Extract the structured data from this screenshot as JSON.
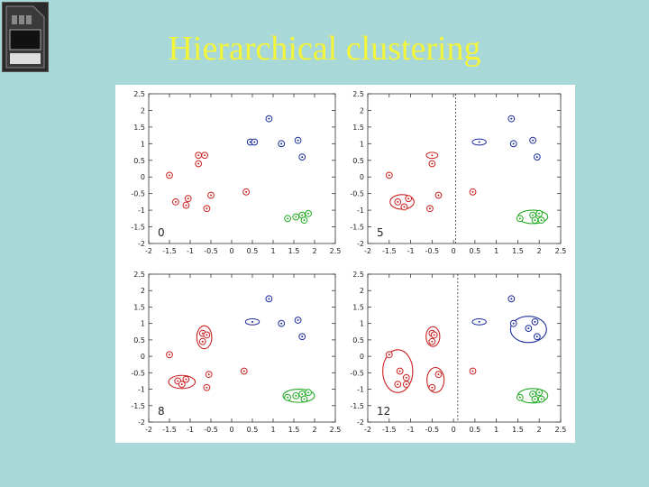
{
  "slide": {
    "title": "Hierarchical clustering",
    "background": "#a8d8d8",
    "title_color": "#f4f43a"
  },
  "logo": {
    "icon": "sd-memory-card-icon"
  },
  "colors": {
    "red": "#cc2222",
    "blue": "#1c2c9c",
    "green": "#22aa22"
  },
  "chart_data": [
    {
      "type": "scatter",
      "panel_label": "0",
      "xlim": [
        -2,
        2.5
      ],
      "ylim": [
        -2,
        2.5
      ],
      "xticks": [
        "-2",
        "-1.5",
        "-1",
        "-0.5",
        "0",
        "0.5",
        "1",
        "1.5",
        "2",
        "2.5"
      ],
      "yticks": [
        "2.5",
        "2",
        "1.5",
        "1",
        "0.5",
        "0",
        "-0.5",
        "-1",
        "-1.5",
        "-2"
      ],
      "points": [
        {
          "x": 0.9,
          "y": 1.75,
          "c": "blue"
        },
        {
          "x": 0.45,
          "y": 1.05,
          "c": "blue"
        },
        {
          "x": 0.55,
          "y": 1.05,
          "c": "blue"
        },
        {
          "x": 1.2,
          "y": 1.0,
          "c": "blue"
        },
        {
          "x": 1.6,
          "y": 1.1,
          "c": "blue"
        },
        {
          "x": 1.7,
          "y": 0.6,
          "c": "blue"
        },
        {
          "x": -0.8,
          "y": 0.65,
          "c": "red"
        },
        {
          "x": -0.65,
          "y": 0.65,
          "c": "red"
        },
        {
          "x": -0.8,
          "y": 0.4,
          "c": "red"
        },
        {
          "x": -1.5,
          "y": 0.05,
          "c": "red"
        },
        {
          "x": -1.05,
          "y": -0.65,
          "c": "red"
        },
        {
          "x": -1.35,
          "y": -0.75,
          "c": "red"
        },
        {
          "x": -1.1,
          "y": -0.85,
          "c": "red"
        },
        {
          "x": -0.5,
          "y": -0.55,
          "c": "red"
        },
        {
          "x": -0.6,
          "y": -0.95,
          "c": "red"
        },
        {
          "x": 0.35,
          "y": -0.45,
          "c": "red"
        },
        {
          "x": 1.35,
          "y": -1.25,
          "c": "green"
        },
        {
          "x": 1.55,
          "y": -1.2,
          "c": "green"
        },
        {
          "x": 1.7,
          "y": -1.15,
          "c": "green"
        },
        {
          "x": 1.85,
          "y": -1.1,
          "c": "green"
        },
        {
          "x": 1.75,
          "y": -1.3,
          "c": "green"
        }
      ],
      "ellipses": []
    },
    {
      "type": "scatter",
      "panel_label": "5",
      "xlim": [
        -2,
        2.5
      ],
      "ylim": [
        -2,
        2.5
      ],
      "xticks": [
        "-2",
        "-1.5",
        "-1",
        "-0.5",
        "0",
        "0.5",
        "1",
        "1.5",
        "2",
        "2.5"
      ],
      "yticks": [
        "2.5",
        "2",
        "1.5",
        "1",
        "0.5",
        "0",
        "-0.5",
        "-1",
        "-1.5",
        "-2"
      ],
      "divider_x": 0.05,
      "points": [
        {
          "x": 1.35,
          "y": 1.75,
          "c": "blue"
        },
        {
          "x": 0.6,
          "y": 1.05,
          "c": "blue",
          "w": 2.4
        },
        {
          "x": 1.4,
          "y": 1.0,
          "c": "blue"
        },
        {
          "x": 1.85,
          "y": 1.1,
          "c": "blue"
        },
        {
          "x": 1.95,
          "y": 0.6,
          "c": "blue"
        },
        {
          "x": -0.5,
          "y": 0.65,
          "c": "red",
          "w": 2.0
        },
        {
          "x": -0.5,
          "y": 0.4,
          "c": "red"
        },
        {
          "x": -1.5,
          "y": 0.05,
          "c": "red"
        },
        {
          "x": -1.05,
          "y": -0.65,
          "c": "red"
        },
        {
          "x": -1.3,
          "y": -0.75,
          "c": "red"
        },
        {
          "x": -1.15,
          "y": -0.9,
          "c": "red"
        },
        {
          "x": -0.35,
          "y": -0.55,
          "c": "red"
        },
        {
          "x": -0.55,
          "y": -0.95,
          "c": "red"
        },
        {
          "x": 0.45,
          "y": -0.45,
          "c": "red"
        },
        {
          "x": 1.55,
          "y": -1.25,
          "c": "green"
        },
        {
          "x": 1.85,
          "y": -1.15,
          "c": "green"
        },
        {
          "x": 2.0,
          "y": -1.1,
          "c": "green"
        },
        {
          "x": 2.05,
          "y": -1.3,
          "c": "green"
        },
        {
          "x": 1.9,
          "y": -1.3,
          "c": "green"
        }
      ],
      "ellipses": [
        {
          "cx": -1.2,
          "cy": -0.75,
          "rx": 0.28,
          "ry": 0.22,
          "c": "red"
        },
        {
          "cx": 1.85,
          "cy": -1.2,
          "rx": 0.35,
          "ry": 0.2,
          "c": "green"
        }
      ]
    },
    {
      "type": "scatter",
      "panel_label": "8",
      "xlim": [
        -2,
        2.5
      ],
      "ylim": [
        -2,
        2.5
      ],
      "xticks": [
        "-2",
        "-1.5",
        "-1",
        "-0.5",
        "0",
        "0.5",
        "1",
        "1.5",
        "2",
        "2.5"
      ],
      "yticks": [
        "2.5",
        "2",
        "1.5",
        "1",
        "0.5",
        "0",
        "-0.5",
        "-1",
        "-1.5",
        "-2"
      ],
      "points": [
        {
          "x": 0.9,
          "y": 1.75,
          "c": "blue"
        },
        {
          "x": 0.5,
          "y": 1.05,
          "c": "blue",
          "w": 2.4
        },
        {
          "x": 1.2,
          "y": 1.0,
          "c": "blue"
        },
        {
          "x": 1.6,
          "y": 1.1,
          "c": "blue"
        },
        {
          "x": 1.7,
          "y": 0.6,
          "c": "blue"
        },
        {
          "x": -0.7,
          "y": 0.7,
          "c": "red"
        },
        {
          "x": -0.6,
          "y": 0.65,
          "c": "red"
        },
        {
          "x": -0.7,
          "y": 0.45,
          "c": "red"
        },
        {
          "x": -1.5,
          "y": 0.05,
          "c": "red"
        },
        {
          "x": -1.3,
          "y": -0.75,
          "c": "red"
        },
        {
          "x": -1.1,
          "y": -0.7,
          "c": "red"
        },
        {
          "x": -1.2,
          "y": -0.85,
          "c": "red"
        },
        {
          "x": -0.55,
          "y": -0.55,
          "c": "red"
        },
        {
          "x": -0.6,
          "y": -0.95,
          "c": "red"
        },
        {
          "x": 0.3,
          "y": -0.45,
          "c": "red"
        },
        {
          "x": 1.35,
          "y": -1.25,
          "c": "green"
        },
        {
          "x": 1.55,
          "y": -1.2,
          "c": "green"
        },
        {
          "x": 1.7,
          "y": -1.15,
          "c": "green"
        },
        {
          "x": 1.85,
          "y": -1.1,
          "c": "green"
        },
        {
          "x": 1.75,
          "y": -1.3,
          "c": "green"
        }
      ],
      "ellipses": [
        {
          "cx": -0.66,
          "cy": 0.58,
          "rx": 0.18,
          "ry": 0.35,
          "c": "red"
        },
        {
          "cx": -1.2,
          "cy": -0.78,
          "rx": 0.32,
          "ry": 0.2,
          "c": "red"
        },
        {
          "cx": 1.62,
          "cy": -1.2,
          "rx": 0.38,
          "ry": 0.2,
          "c": "green"
        }
      ]
    },
    {
      "type": "scatter",
      "panel_label": "12",
      "xlim": [
        -2,
        2.5
      ],
      "ylim": [
        -2,
        2.5
      ],
      "xticks": [
        "-2",
        "-1.5",
        "-1",
        "-0.5",
        "0",
        "0.5",
        "1",
        "1.5",
        "2",
        "2.5"
      ],
      "yticks": [
        "2.5",
        "2",
        "1.5",
        "1",
        "0.5",
        "0",
        "-0.5",
        "-1",
        "-1.5",
        "-2"
      ],
      "divider_x": 0.1,
      "points": [
        {
          "x": 1.35,
          "y": 1.75,
          "c": "blue"
        },
        {
          "x": 0.6,
          "y": 1.05,
          "c": "blue",
          "w": 2.4
        },
        {
          "x": 1.4,
          "y": 1.0,
          "c": "blue"
        },
        {
          "x": 1.75,
          "y": 0.85,
          "c": "blue"
        },
        {
          "x": 1.9,
          "y": 1.05,
          "c": "blue"
        },
        {
          "x": 1.95,
          "y": 0.6,
          "c": "blue"
        },
        {
          "x": -0.5,
          "y": 0.7,
          "c": "red"
        },
        {
          "x": -0.45,
          "y": 0.65,
          "c": "red"
        },
        {
          "x": -0.5,
          "y": 0.45,
          "c": "red"
        },
        {
          "x": -1.5,
          "y": 0.05,
          "c": "red"
        },
        {
          "x": -1.25,
          "y": -0.45,
          "c": "red"
        },
        {
          "x": -1.1,
          "y": -0.65,
          "c": "red"
        },
        {
          "x": -1.3,
          "y": -0.85,
          "c": "red"
        },
        {
          "x": -1.1,
          "y": -0.85,
          "c": "red"
        },
        {
          "x": -0.35,
          "y": -0.55,
          "c": "red"
        },
        {
          "x": -0.5,
          "y": -0.95,
          "c": "red"
        },
        {
          "x": 0.45,
          "y": -0.45,
          "c": "red"
        },
        {
          "x": 1.55,
          "y": -1.25,
          "c": "green"
        },
        {
          "x": 1.85,
          "y": -1.15,
          "c": "green"
        },
        {
          "x": 2.0,
          "y": -1.1,
          "c": "green"
        },
        {
          "x": 2.05,
          "y": -1.3,
          "c": "green"
        },
        {
          "x": 1.9,
          "y": -1.3,
          "c": "green"
        }
      ],
      "ellipses": [
        {
          "cx": -0.48,
          "cy": 0.6,
          "rx": 0.16,
          "ry": 0.3,
          "c": "red"
        },
        {
          "cx": -1.3,
          "cy": -0.45,
          "rx": 0.35,
          "ry": 0.65,
          "c": "red"
        },
        {
          "cx": -0.42,
          "cy": -0.72,
          "rx": 0.2,
          "ry": 0.38,
          "c": "red"
        },
        {
          "cx": 1.75,
          "cy": 0.82,
          "rx": 0.42,
          "ry": 0.4,
          "c": "blue"
        },
        {
          "cx": 1.85,
          "cy": -1.2,
          "rx": 0.35,
          "ry": 0.22,
          "c": "green"
        }
      ]
    }
  ]
}
